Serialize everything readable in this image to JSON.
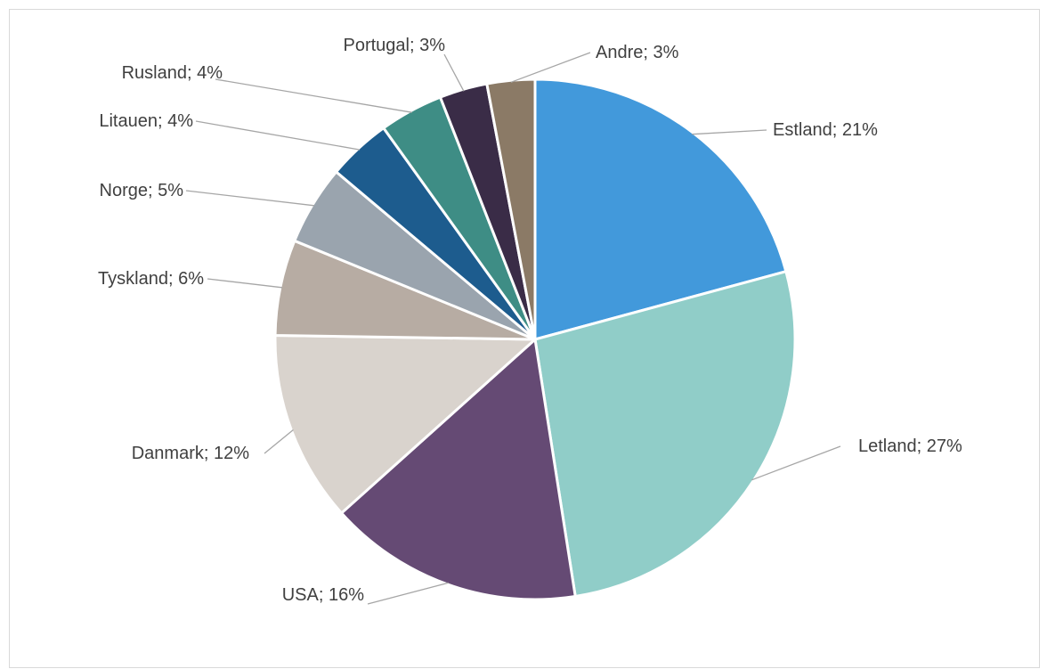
{
  "chart_data": {
    "type": "pie",
    "title": "",
    "start_angle_deg": 0,
    "direction": "clockwise",
    "label_format": "{name}; {value}%",
    "legend": "none",
    "series": [
      {
        "name": "",
        "slices": [
          {
            "name": "Estland",
            "value": 21,
            "color": "#4299DB"
          },
          {
            "name": "Letland",
            "value": 27,
            "color": "#90CDC8"
          },
          {
            "name": "USA",
            "value": 16,
            "color": "#654A74"
          },
          {
            "name": "Danmark",
            "value": 12,
            "color": "#D9D3CD"
          },
          {
            "name": "Tyskland",
            "value": 6,
            "color": "#B7ACA3"
          },
          {
            "name": "Norge",
            "value": 5,
            "color": "#9AA4AE"
          },
          {
            "name": "Litauen",
            "value": 4,
            "color": "#1D5C8E"
          },
          {
            "name": "Rusland",
            "value": 4,
            "color": "#3E8D85"
          },
          {
            "name": "Portugal",
            "value": 3,
            "color": "#3A2C47"
          },
          {
            "name": "Andre",
            "value": 3,
            "color": "#8B7A66"
          }
        ]
      }
    ],
    "labels": [
      "Estland; 21%",
      "Letland; 27%",
      "USA; 16%",
      "Danmark; 12%",
      "Tyskland; 6%",
      "Norge; 5%",
      "Litauen; 4%",
      "Rusland; 4%",
      "Portugal; 3%",
      "Andre; 3%"
    ]
  }
}
